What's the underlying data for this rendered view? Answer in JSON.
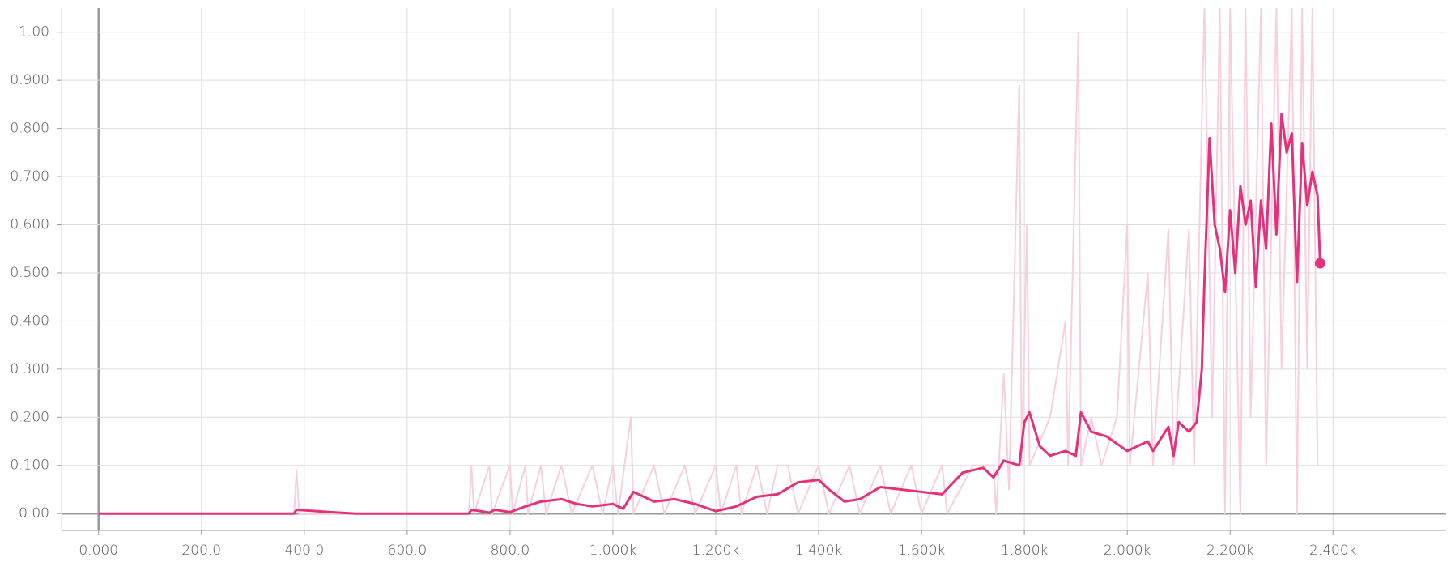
{
  "chart_data": {
    "type": "line",
    "xlim": [
      -72,
      2620
    ],
    "ylim": [
      -0.035,
      1.05
    ],
    "xticks": [
      {
        "value": 0,
        "label": "0.000"
      },
      {
        "value": 200,
        "label": "200.0"
      },
      {
        "value": 400,
        "label": "400.0"
      },
      {
        "value": 600,
        "label": "600.0"
      },
      {
        "value": 800,
        "label": "800.0"
      },
      {
        "value": 1000,
        "label": "1.000k"
      },
      {
        "value": 1200,
        "label": "1.200k"
      },
      {
        "value": 1400,
        "label": "1.400k"
      },
      {
        "value": 1600,
        "label": "1.600k"
      },
      {
        "value": 1800,
        "label": "1.800k"
      },
      {
        "value": 2000,
        "label": "2.000k"
      },
      {
        "value": 2200,
        "label": "2.200k"
      },
      {
        "value": 2400,
        "label": "2.400k"
      }
    ],
    "yticks": [
      {
        "value": 0,
        "label": "0.00"
      },
      {
        "value": 0.1,
        "label": "0.100"
      },
      {
        "value": 0.2,
        "label": "0.200"
      },
      {
        "value": 0.3,
        "label": "0.300"
      },
      {
        "value": 0.4,
        "label": "0.400"
      },
      {
        "value": 0.5,
        "label": "0.500"
      },
      {
        "value": 0.6,
        "label": "0.600"
      },
      {
        "value": 0.7,
        "label": "0.700"
      },
      {
        "value": 0.8,
        "label": "0.800"
      },
      {
        "value": 0.9,
        "label": "0.900"
      },
      {
        "value": 1,
        "label": "1.00"
      }
    ],
    "grid": true,
    "series": [
      {
        "color": "#f8cfdd",
        "x": [
          0,
          380,
          385,
          390,
          720,
          725,
          730,
          760,
          765,
          800,
          805,
          830,
          835,
          860,
          870,
          900,
          920,
          960,
          980,
          1000,
          1010,
          1035,
          1040,
          1080,
          1100,
          1140,
          1160,
          1200,
          1210,
          1240,
          1250,
          1280,
          1300,
          1320,
          1340,
          1360,
          1400,
          1420,
          1460,
          1480,
          1520,
          1540,
          1580,
          1600,
          1640,
          1650,
          1700,
          1740,
          1745,
          1760,
          1770,
          1790,
          1795,
          1805,
          1810,
          1850,
          1880,
          1885,
          1905,
          1910,
          1930,
          1950,
          1980,
          2000,
          2005,
          2040,
          2050,
          2080,
          2090,
          2120,
          2130,
          2150,
          2165,
          2180,
          2190,
          2200,
          2220,
          2230,
          2240,
          2260,
          2270,
          2290,
          2300,
          2320,
          2330,
          2340,
          2350,
          2360,
          2370
        ],
        "values": [
          0,
          0,
          0.09,
          0,
          0,
          0.1,
          0,
          0.1,
          0,
          0.1,
          0,
          0.1,
          0,
          0.1,
          0,
          0.1,
          0,
          0.1,
          0,
          0.1,
          0,
          0.2,
          0,
          0.1,
          0,
          0.1,
          0,
          0.1,
          0,
          0.1,
          0,
          0.1,
          0,
          0.1,
          0.1,
          0,
          0.1,
          0,
          0.1,
          0,
          0.1,
          0,
          0.1,
          0,
          0.1,
          0,
          0.1,
          0.1,
          0,
          0.29,
          0.05,
          0.89,
          0.1,
          0.6,
          0.1,
          0.2,
          0.4,
          0.1,
          1.0,
          0.1,
          0.2,
          0.1,
          0.2,
          0.6,
          0.1,
          0.5,
          0.1,
          0.59,
          0.1,
          0.59,
          0.1,
          1.05,
          0.2,
          1.05,
          0,
          1.05,
          0,
          1.05,
          0.2,
          1.05,
          0.1,
          1.05,
          0.3,
          1.05,
          0,
          1.05,
          0.3,
          1.05,
          0.1
        ]
      },
      {
        "color": "#e5307a",
        "x": [
          0,
          380,
          385,
          450,
          500,
          720,
          725,
          760,
          770,
          800,
          830,
          860,
          900,
          930,
          960,
          1000,
          1020,
          1040,
          1080,
          1120,
          1160,
          1200,
          1240,
          1280,
          1320,
          1360,
          1400,
          1420,
          1450,
          1480,
          1520,
          1560,
          1600,
          1640,
          1680,
          1720,
          1740,
          1760,
          1790,
          1800,
          1810,
          1830,
          1850,
          1880,
          1900,
          1910,
          1930,
          1960,
          2000,
          2040,
          2050,
          2080,
          2090,
          2100,
          2120,
          2135,
          2145,
          2150,
          2160,
          2170,
          2180,
          2190,
          2200,
          2210,
          2220,
          2230,
          2240,
          2250,
          2260,
          2270,
          2280,
          2290,
          2300,
          2310,
          2320,
          2330,
          2340,
          2350,
          2360,
          2370,
          2375
        ],
        "values": [
          0,
          0,
          0.008,
          0.003,
          0,
          0,
          0.008,
          0.002,
          0.008,
          0.003,
          0.015,
          0.025,
          0.03,
          0.02,
          0.015,
          0.02,
          0.01,
          0.045,
          0.025,
          0.03,
          0.02,
          0.005,
          0.015,
          0.035,
          0.04,
          0.065,
          0.07,
          0.05,
          0.025,
          0.03,
          0.055,
          0.05,
          0.045,
          0.04,
          0.085,
          0.095,
          0.075,
          0.11,
          0.1,
          0.19,
          0.21,
          0.14,
          0.12,
          0.13,
          0.12,
          0.21,
          0.17,
          0.16,
          0.13,
          0.15,
          0.13,
          0.18,
          0.12,
          0.19,
          0.17,
          0.19,
          0.3,
          0.48,
          0.78,
          0.6,
          0.55,
          0.46,
          0.63,
          0.5,
          0.68,
          0.6,
          0.65,
          0.47,
          0.65,
          0.55,
          0.81,
          0.58,
          0.83,
          0.75,
          0.79,
          0.48,
          0.77,
          0.64,
          0.71,
          0.66,
          0.52
        ]
      }
    ]
  }
}
